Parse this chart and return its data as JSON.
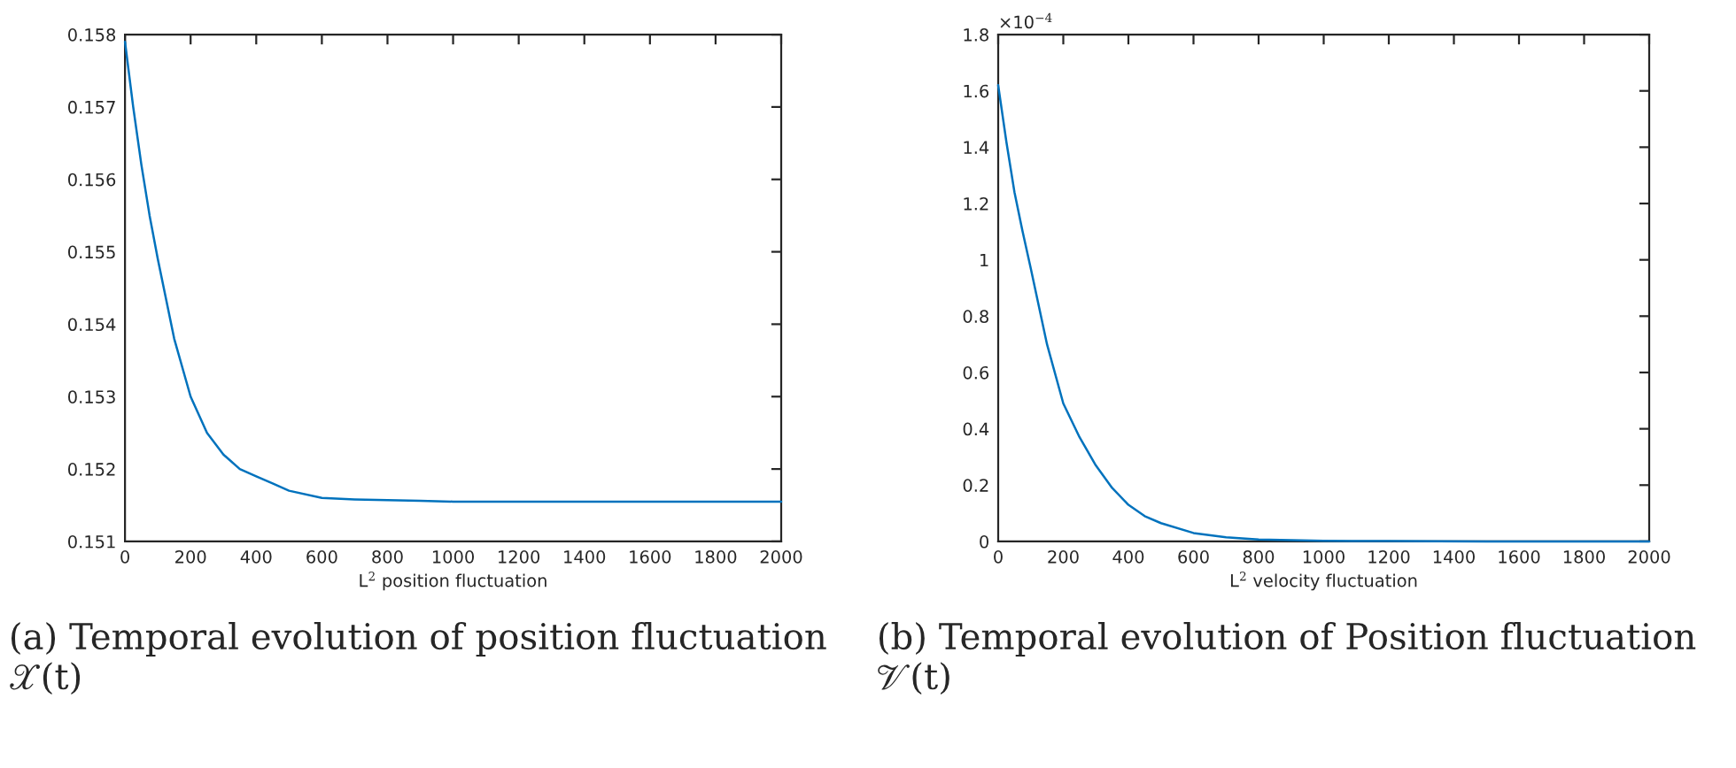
{
  "chart_data": [
    {
      "type": "line",
      "xlabel": "L$^{2}$ position fluctuation",
      "x": [
        0,
        25,
        50,
        75,
        100,
        150,
        200,
        250,
        300,
        350,
        400,
        450,
        500,
        600,
        700,
        800,
        900,
        1000,
        1200,
        1500,
        2000
      ],
      "series": [
        {
          "color": "#0072bd",
          "values": [
            0.1579,
            0.157,
            0.1562,
            0.1555,
            0.1549,
            0.1538,
            0.153,
            0.1525,
            0.1522,
            0.152,
            0.1519,
            0.1518,
            0.1517,
            0.1516,
            0.15158,
            0.15157,
            0.15156,
            0.15155,
            0.15155,
            0.15155,
            0.15155
          ]
        }
      ],
      "xlim": [
        0,
        2000
      ],
      "xticks": [
        0,
        200,
        400,
        600,
        800,
        1000,
        1200,
        1400,
        1600,
        1800,
        2000
      ],
      "ylim": [
        0.151,
        0.158
      ],
      "yticks": [
        0.151,
        0.152,
        0.153,
        0.154,
        0.155,
        0.156,
        0.157,
        0.158
      ],
      "grid": false,
      "legend": false,
      "annotations": [
        "(a) Temporal evolution of position fluctuation 𝒳(t)"
      ]
    },
    {
      "type": "line",
      "xlabel": "L$^{2}$ velocity fluctuation",
      "x": [
        0,
        25,
        50,
        75,
        100,
        150,
        200,
        250,
        300,
        350,
        400,
        450,
        500,
        600,
        700,
        800,
        1000,
        1200,
        1500,
        2000
      ],
      "series": [
        {
          "color": "#0072bd",
          "values": [
            1.62,
            1.42,
            1.24,
            1.1,
            0.97,
            0.7,
            0.49,
            0.37,
            0.27,
            0.19,
            0.13,
            0.09,
            0.065,
            0.03,
            0.015,
            0.007,
            0.002,
            0.001,
            0,
            0
          ]
        }
      ],
      "xlim": [
        0,
        2000
      ],
      "xticks": [
        0,
        200,
        400,
        600,
        800,
        1000,
        1200,
        1400,
        1600,
        1800,
        2000
      ],
      "ylim": [
        0,
        1.8
      ],
      "yticks": [
        0,
        0.2,
        0.4,
        0.6,
        0.8,
        1,
        1.2,
        1.4,
        1.6,
        1.8
      ],
      "grid": false,
      "legend": false,
      "annotations": [
        "×10$^{−4}$",
        "(b) Temporal evolution of Position fluctuation 𝒱(t)"
      ]
    }
  ]
}
